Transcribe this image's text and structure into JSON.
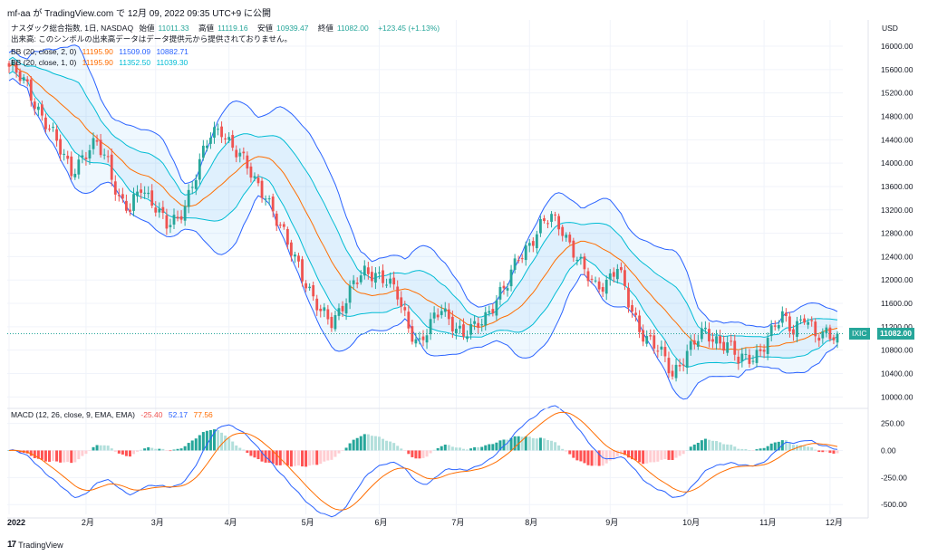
{
  "header": {
    "text": "mf-aa が TradingView.com で 12月 09, 2022 09:35 UTC+9 に公開"
  },
  "legend": {
    "title_line": "ナスダック総合指数, 1日, NASDAQ",
    "open_label": "始値",
    "open": "11011.33",
    "high_label": "高値",
    "high": "11119.16",
    "low_label": "安値",
    "low": "10939.47",
    "close_label": "終値",
    "close": "11082.00",
    "change": "+123.45 (+1.13%)",
    "volume_note": "出来高: このシンボルの出来高データはデータ提供元から提供されておりません。",
    "bb2_label": "BB (20, close, 2, 0)",
    "bb2_mid": "11195.90",
    "bb2_up": "11509.09",
    "bb2_low": "10882.71",
    "bb1_label": "BB (20, close, 1, 0)",
    "bb1_mid": "11195.90",
    "bb1_up": "11352.50",
    "bb1_low": "11039.30",
    "macd_label": "MACD (12, 26, close, 9, EMA, EMA)",
    "macd_hist": "-25.40",
    "macd_line": "52.17",
    "macd_signal": "77.56"
  },
  "currency": "USD",
  "symbol_tag": "IXIC",
  "last_price": "11082.00",
  "footer": {
    "logo": "17",
    "brand": "TradingView"
  },
  "colors": {
    "up": "#26a69a",
    "down": "#ef5350",
    "bb2": "#2962ff",
    "bb1": "#00bcd4",
    "mid": "#ff6d00",
    "macd": "#2962ff",
    "signal": "#ff6d00"
  },
  "chart_data": {
    "type": "candlestick",
    "price_axis_ticks": [
      10000,
      10400,
      10800,
      11200,
      11600,
      12000,
      12400,
      12800,
      13200,
      13600,
      14000,
      14400,
      14800,
      15200,
      15600,
      16000
    ],
    "price_axis_tick_labels": [
      "10000.00",
      "10400.00",
      "10800.00",
      "11200.00",
      "11600.00",
      "12000.00",
      "12400.00",
      "12800.00",
      "13200.00",
      "13600.00",
      "14000.00",
      "14400.00",
      "14800.00",
      "15200.00",
      "15600.00",
      "16000.00"
    ],
    "ylim_price": [
      9850,
      16450
    ],
    "macd_axis_ticks": [
      250,
      0,
      -250,
      -500
    ],
    "macd_axis_tick_labels": [
      "250.00",
      "0.00",
      "-250.00",
      "-500.00"
    ],
    "ylim_macd": [
      -590,
      330
    ],
    "x_labels": [
      "2022",
      "2月",
      "3月",
      "4月",
      "5月",
      "6月",
      "7月",
      "8月",
      "9月",
      "10月",
      "11月",
      "12月"
    ],
    "close_path": [
      [
        0,
        15650
      ],
      [
        5,
        15300
      ],
      [
        10,
        14700
      ],
      [
        14,
        14200
      ],
      [
        17,
        13900
      ],
      [
        20,
        14100
      ],
      [
        24,
        14300
      ],
      [
        27,
        14050
      ],
      [
        30,
        13400
      ],
      [
        33,
        13150
      ],
      [
        36,
        13600
      ],
      [
        40,
        13300
      ],
      [
        43,
        12900
      ],
      [
        46,
        13000
      ],
      [
        49,
        13500
      ],
      [
        52,
        14000
      ],
      [
        55,
        14450
      ],
      [
        58,
        14600
      ],
      [
        61,
        14300
      ],
      [
        64,
        14000
      ],
      [
        67,
        13700
      ],
      [
        70,
        13500
      ],
      [
        73,
        13000
      ],
      [
        76,
        12600
      ],
      [
        79,
        12300
      ],
      [
        82,
        11800
      ],
      [
        85,
        11400
      ],
      [
        88,
        11300
      ],
      [
        91,
        11600
      ],
      [
        94,
        11900
      ],
      [
        97,
        12100
      ],
      [
        100,
        12150
      ],
      [
        103,
        12000
      ],
      [
        106,
        11700
      ],
      [
        109,
        11200
      ],
      [
        112,
        10950
      ],
      [
        115,
        11200
      ],
      [
        118,
        11500
      ],
      [
        121,
        11300
      ],
      [
        124,
        11050
      ],
      [
        127,
        11150
      ],
      [
        130,
        11400
      ],
      [
        133,
        11700
      ],
      [
        136,
        11900
      ],
      [
        139,
        12400
      ],
      [
        142,
        12650
      ],
      [
        145,
        12900
      ],
      [
        148,
        13050
      ],
      [
        151,
        12900
      ],
      [
        154,
        12500
      ],
      [
        157,
        12100
      ],
      [
        160,
        11900
      ],
      [
        163,
        12000
      ],
      [
        166,
        12200
      ],
      [
        169,
        11600
      ],
      [
        172,
        11200
      ],
      [
        175,
        10950
      ],
      [
        178,
        10700
      ],
      [
        181,
        10400
      ],
      [
        184,
        10700
      ],
      [
        187,
        10900
      ],
      [
        190,
        11100
      ],
      [
        193,
        11000
      ],
      [
        196,
        10900
      ],
      [
        199,
        10600
      ],
      [
        202,
        10700
      ],
      [
        205,
        10800
      ],
      [
        208,
        11050
      ],
      [
        211,
        11400
      ],
      [
        214,
        11200
      ],
      [
        217,
        11350
      ],
      [
        220,
        11000
      ],
      [
        223,
        11150
      ],
      [
        226,
        11082
      ]
    ]
  }
}
